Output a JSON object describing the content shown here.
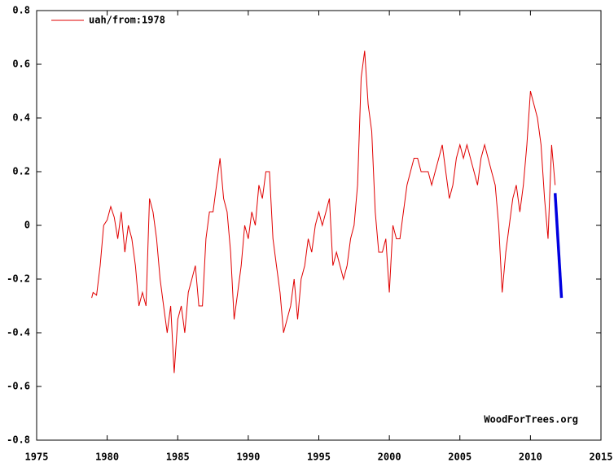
{
  "chart_data": {
    "type": "line",
    "annotation": "WoodForTrees.org",
    "xlim": [
      1975,
      2015
    ],
    "xticks": [
      1975,
      1980,
      1985,
      1990,
      1995,
      2000,
      2005,
      2010,
      2015
    ],
    "ylim": [
      -0.8,
      0.8
    ],
    "yticks": [
      -0.8,
      -0.6,
      -0.4,
      -0.2,
      0,
      0.2,
      0.4,
      0.6,
      0.8
    ],
    "grid": false,
    "legend": "top-left",
    "series": [
      {
        "name": "uah/from:1978",
        "color": "#e00000",
        "x": [
          1978.9,
          1979,
          1979.25,
          1979.5,
          1979.75,
          1980,
          1980.25,
          1980.5,
          1980.75,
          1981,
          1981.25,
          1981.5,
          1981.75,
          1982,
          1982.25,
          1982.5,
          1982.75,
          1983,
          1983.25,
          1983.5,
          1983.75,
          1984,
          1984.25,
          1984.5,
          1984.75,
          1985,
          1985.25,
          1985.5,
          1985.75,
          1986,
          1986.25,
          1986.5,
          1986.75,
          1987,
          1987.25,
          1987.5,
          1987.75,
          1988,
          1988.25,
          1988.5,
          1988.75,
          1989,
          1989.25,
          1989.5,
          1989.75,
          1990,
          1990.25,
          1990.5,
          1990.75,
          1991,
          1991.25,
          1991.5,
          1991.75,
          1992,
          1992.25,
          1992.5,
          1992.75,
          1993,
          1993.25,
          1993.5,
          1993.75,
          1994,
          1994.25,
          1994.5,
          1994.75,
          1995,
          1995.25,
          1995.5,
          1995.75,
          1996,
          1996.25,
          1996.5,
          1996.75,
          1997,
          1997.25,
          1997.5,
          1997.75,
          1998,
          1998.25,
          1998.5,
          1998.75,
          1999,
          1999.25,
          1999.5,
          1999.75,
          2000,
          2000.25,
          2000.5,
          2000.75,
          2001,
          2001.25,
          2001.5,
          2001.75,
          2002,
          2002.25,
          2002.5,
          2002.75,
          2003,
          2003.25,
          2003.5,
          2003.75,
          2004,
          2004.25,
          2004.5,
          2004.75,
          2005,
          2005.25,
          2005.5,
          2005.75,
          2006,
          2006.25,
          2006.5,
          2006.75,
          2007,
          2007.25,
          2007.5,
          2007.75,
          2008,
          2008.25,
          2008.5,
          2008.75,
          2009,
          2009.25,
          2009.5,
          2009.75,
          2010,
          2010.25,
          2010.5,
          2010.75,
          2011,
          2011.25,
          2011.5,
          2011.75
        ],
        "values": [
          -0.27,
          -0.25,
          -0.26,
          -0.15,
          0.0,
          0.02,
          0.07,
          0.03,
          -0.05,
          0.05,
          -0.1,
          0.0,
          -0.05,
          -0.15,
          -0.3,
          -0.25,
          -0.3,
          0.1,
          0.05,
          -0.05,
          -0.2,
          -0.3,
          -0.4,
          -0.3,
          -0.55,
          -0.35,
          -0.3,
          -0.4,
          -0.25,
          -0.2,
          -0.15,
          -0.3,
          -0.3,
          -0.05,
          0.05,
          0.05,
          0.15,
          0.25,
          0.1,
          0.05,
          -0.1,
          -0.35,
          -0.25,
          -0.15,
          0.0,
          -0.05,
          0.05,
          0.0,
          0.15,
          0.1,
          0.2,
          0.2,
          -0.05,
          -0.15,
          -0.25,
          -0.4,
          -0.35,
          -0.3,
          -0.2,
          -0.35,
          -0.2,
          -0.15,
          -0.05,
          -0.1,
          0.0,
          0.05,
          0.0,
          0.05,
          0.1,
          -0.15,
          -0.1,
          -0.15,
          -0.2,
          -0.15,
          -0.05,
          0.0,
          0.15,
          0.55,
          0.65,
          0.45,
          0.35,
          0.05,
          -0.1,
          -0.1,
          -0.05,
          -0.25,
          0.0,
          -0.05,
          -0.05,
          0.05,
          0.15,
          0.2,
          0.25,
          0.25,
          0.2,
          0.2,
          0.2,
          0.15,
          0.2,
          0.25,
          0.3,
          0.2,
          0.1,
          0.15,
          0.25,
          0.3,
          0.25,
          0.3,
          0.25,
          0.2,
          0.15,
          0.25,
          0.3,
          0.25,
          0.2,
          0.15,
          0.0,
          -0.25,
          -0.1,
          0.0,
          0.1,
          0.15,
          0.05,
          0.15,
          0.3,
          0.5,
          0.45,
          0.4,
          0.3,
          0.1,
          -0.05,
          0.3,
          0.15
        ]
      },
      {
        "color": "#0000e0",
        "x": [
          2011.75,
          2012.2
        ],
        "values": [
          0.12,
          -0.27
        ]
      }
    ]
  }
}
